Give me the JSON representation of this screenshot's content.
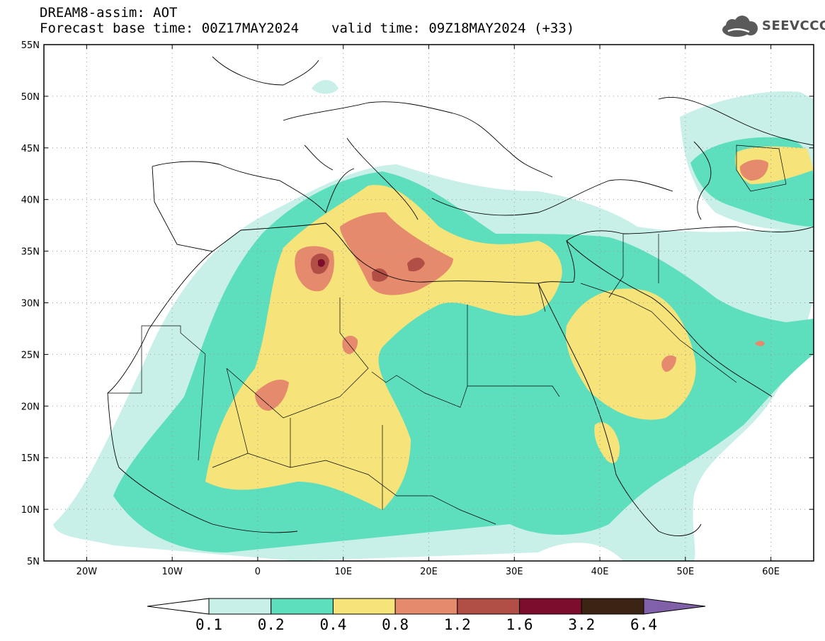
{
  "header": {
    "line1": "DREAM8-assim: AOT",
    "line2_base": "Forecast base time: 00Z17MAY2024",
    "line2_valid": "valid time: 09Z18MAY2024 (+33)"
  },
  "logo": {
    "text": "SEEVCCC",
    "icon": "cloud-icon"
  },
  "map": {
    "lon_range": [
      -25,
      65
    ],
    "lat_range": [
      5,
      55
    ],
    "lat_ticks": [
      {
        "v": 55,
        "label": "55N"
      },
      {
        "v": 50,
        "label": "50N"
      },
      {
        "v": 45,
        "label": "45N"
      },
      {
        "v": 40,
        "label": "40N"
      },
      {
        "v": 35,
        "label": "35N"
      },
      {
        "v": 30,
        "label": "30N"
      },
      {
        "v": 25,
        "label": "25N"
      },
      {
        "v": 20,
        "label": "20N"
      },
      {
        "v": 15,
        "label": "15N"
      },
      {
        "v": 10,
        "label": "10N"
      },
      {
        "v": 5,
        "label": "5N"
      }
    ],
    "lon_ticks": [
      {
        "v": -20,
        "label": "20W"
      },
      {
        "v": -10,
        "label": "10W"
      },
      {
        "v": 0,
        "label": "0"
      },
      {
        "v": 10,
        "label": "10E"
      },
      {
        "v": 20,
        "label": "20E"
      },
      {
        "v": 30,
        "label": "30E"
      },
      {
        "v": 40,
        "label": "40E"
      },
      {
        "v": 50,
        "label": "50E"
      },
      {
        "v": 60,
        "label": "60E"
      }
    ],
    "grid": true
  },
  "colorbar": {
    "labels": [
      "0.1",
      "0.2",
      "0.4",
      "0.8",
      "1.2",
      "1.6",
      "3.2",
      "6.4"
    ],
    "colors": [
      "#ffffff",
      "#c8f0e8",
      "#5ddfbd",
      "#f6e37a",
      "#e58a6c",
      "#b14e45",
      "#7d0d2c",
      "#3c2414",
      "#8060a8"
    ]
  }
}
